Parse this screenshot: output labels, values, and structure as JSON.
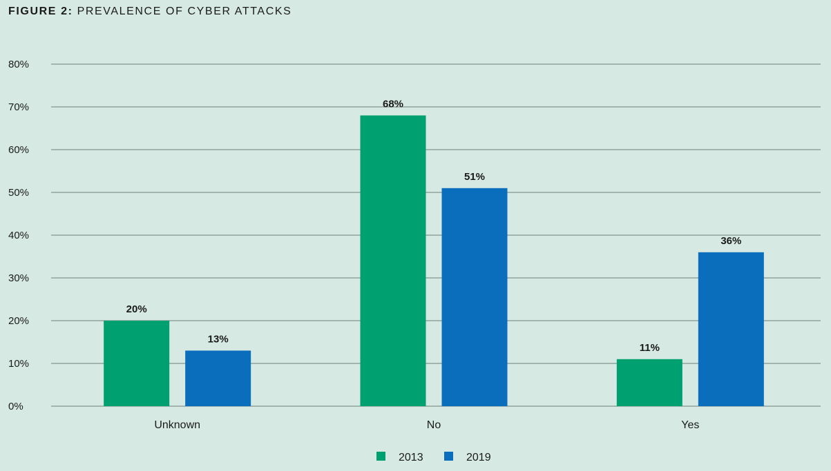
{
  "title_prefix": "FIGURE 2:",
  "title_text": "PREVALENCE OF CYBER ATTACKS",
  "chart_data": {
    "type": "bar",
    "categories": [
      "Unknown",
      "No",
      "Yes"
    ],
    "series": [
      {
        "name": "2013",
        "color": "#00a070",
        "values": [
          20,
          68,
          11
        ],
        "labels": [
          "20%",
          "68%",
          "11%"
        ]
      },
      {
        "name": "2019",
        "color": "#0a6ebd",
        "values": [
          13,
          51,
          36
        ],
        "labels": [
          "13%",
          "51%",
          "36%"
        ]
      }
    ],
    "ylim": [
      0,
      80
    ],
    "yticks": [
      0,
      10,
      20,
      30,
      40,
      50,
      60,
      70,
      80
    ],
    "ytick_labels": [
      "0%",
      "10%",
      "20%",
      "30%",
      "40%",
      "50%",
      "60%",
      "70%",
      "80%"
    ],
    "grid": true,
    "legend": "bottom-center"
  }
}
